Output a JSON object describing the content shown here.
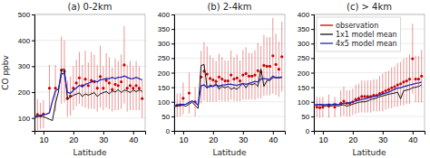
{
  "chart_data": [
    {
      "type": "line",
      "title": "(a) 0-2km",
      "xlabel": "Latitude",
      "ylabel": "CO ppbv",
      "xlim": [
        7,
        44
      ],
      "xticks": [
        10,
        20,
        30,
        40
      ],
      "ylim": [
        50,
        500
      ],
      "yticks": [
        100,
        200,
        300,
        400,
        500
      ],
      "grid": "y",
      "series": [
        {
          "name": "observation",
          "type": "scatter",
          "marker": "circle",
          "color": "#cc0000",
          "x": [
            8,
            9,
            10,
            12,
            14,
            16,
            17,
            18,
            19,
            20,
            21,
            22,
            23,
            24,
            25,
            26,
            27,
            28,
            29,
            30,
            31,
            32,
            33,
            34,
            35,
            36,
            37,
            38,
            39,
            40,
            41,
            42,
            43
          ],
          "values": [
            113,
            108,
            115,
            215,
            215,
            285,
            280,
            175,
            185,
            215,
            235,
            255,
            225,
            250,
            225,
            245,
            240,
            215,
            260,
            215,
            245,
            235,
            210,
            230,
            225,
            240,
            305,
            215,
            225,
            215,
            225,
            215,
            175
          ],
          "error_low": [
            60,
            50,
            55,
            90,
            90,
            130,
            120,
            70,
            75,
            85,
            90,
            100,
            80,
            110,
            90,
            110,
            105,
            90,
            120,
            85,
            105,
            100,
            85,
            100,
            95,
            105,
            150,
            90,
            95,
            85,
            95,
            85,
            75
          ],
          "error_high": [
            60,
            50,
            55,
            90,
            90,
            130,
            120,
            70,
            75,
            85,
            90,
            100,
            80,
            110,
            90,
            110,
            105,
            90,
            120,
            85,
            105,
            100,
            85,
            100,
            95,
            105,
            150,
            90,
            95,
            85,
            95,
            85,
            75
          ]
        },
        {
          "name": "1x1 model mean",
          "type": "line",
          "color": "#111111",
          "x": [
            7,
            8,
            9,
            10,
            11,
            12,
            13,
            14,
            15,
            16,
            17,
            18,
            19,
            20,
            21,
            22,
            23,
            24,
            25,
            26,
            27,
            28,
            29,
            30,
            31,
            32,
            33,
            34,
            35,
            36,
            37,
            38,
            39,
            40,
            41,
            42,
            43
          ],
          "values": [
            100,
            105,
            107,
            105,
            100,
            95,
            90,
            155,
            200,
            285,
            290,
            175,
            180,
            188,
            192,
            197,
            183,
            193,
            188,
            193,
            198,
            183,
            193,
            198,
            202,
            193,
            205,
            200,
            210,
            198,
            208,
            205,
            198,
            208,
            202,
            208,
            203
          ]
        },
        {
          "name": "4x5 model mean",
          "type": "line",
          "color": "#2222bb",
          "x": [
            7,
            8,
            9,
            10,
            11,
            12,
            13,
            14,
            15,
            16,
            17,
            18,
            19,
            20,
            21,
            22,
            23,
            24,
            25,
            26,
            27,
            28,
            29,
            30,
            31,
            32,
            33,
            34,
            35,
            36,
            37,
            38,
            39,
            40,
            41,
            42,
            43
          ],
          "values": [
            105,
            108,
            110,
            112,
            115,
            120,
            165,
            205,
            212,
            270,
            272,
            200,
            195,
            207,
            216,
            226,
            220,
            230,
            234,
            239,
            244,
            239,
            248,
            249,
            253,
            252,
            257,
            252,
            257,
            257,
            262,
            257,
            252,
            252,
            257,
            252,
            247
          ]
        }
      ]
    },
    {
      "type": "line",
      "title": "(b) 2-4km",
      "xlabel": "Latitude",
      "xlim": [
        7,
        44
      ],
      "xticks": [
        10,
        20,
        30,
        40
      ],
      "ylim": [
        0,
        400
      ],
      "yticks": [
        0,
        50,
        100,
        150,
        200,
        250,
        300,
        350,
        400
      ],
      "grid": "y",
      "series": [
        {
          "name": "observation",
          "type": "scatter",
          "marker": "circle",
          "color": "#cc0000",
          "x": [
            8,
            9,
            10,
            12,
            14,
            16,
            17,
            18,
            19,
            20,
            21,
            22,
            23,
            24,
            25,
            26,
            27,
            28,
            29,
            30,
            31,
            32,
            33,
            34,
            35,
            36,
            37,
            38,
            39,
            40,
            41,
            42,
            43
          ],
          "values": [
            88,
            90,
            112,
            130,
            100,
            185,
            205,
            195,
            180,
            175,
            170,
            185,
            178,
            172,
            172,
            192,
            178,
            182,
            172,
            192,
            197,
            188,
            188,
            192,
            207,
            202,
            225,
            222,
            222,
            258,
            228,
            212,
            255
          ],
          "error_low": [
            40,
            40,
            55,
            70,
            50,
            90,
            100,
            95,
            80,
            75,
            70,
            80,
            75,
            70,
            70,
            85,
            75,
            80,
            70,
            85,
            90,
            80,
            80,
            85,
            95,
            90,
            105,
            100,
            100,
            130,
            105,
            95,
            120
          ],
          "error_high": [
            40,
            40,
            55,
            70,
            50,
            90,
            100,
            95,
            80,
            75,
            70,
            80,
            75,
            70,
            70,
            85,
            75,
            80,
            70,
            85,
            90,
            80,
            80,
            85,
            95,
            90,
            105,
            100,
            100,
            130,
            105,
            95,
            120
          ]
        },
        {
          "name": "1x1 model mean",
          "type": "line",
          "color": "#111111",
          "x": [
            7,
            8,
            9,
            10,
            11,
            12,
            13,
            14,
            15,
            16,
            17,
            18,
            19,
            20,
            21,
            22,
            23,
            24,
            25,
            26,
            27,
            28,
            29,
            30,
            31,
            32,
            33,
            34,
            35,
            36,
            37,
            38,
            39,
            40,
            41,
            42,
            43
          ],
          "values": [
            83,
            85,
            87,
            88,
            85,
            92,
            98,
            88,
            77,
            225,
            228,
            148,
            158,
            153,
            163,
            143,
            153,
            148,
            153,
            143,
            148,
            143,
            153,
            163,
            148,
            163,
            158,
            163,
            153,
            213,
            153,
            173,
            173,
            183,
            183,
            183,
            183
          ]
        },
        {
          "name": "4x5 model mean",
          "type": "line",
          "color": "#2222bb",
          "x": [
            7,
            8,
            9,
            10,
            11,
            12,
            13,
            14,
            15,
            16,
            17,
            18,
            19,
            20,
            21,
            22,
            23,
            24,
            25,
            26,
            27,
            28,
            29,
            30,
            31,
            32,
            33,
            34,
            35,
            36,
            37,
            38,
            39,
            40,
            41,
            42,
            43
          ],
          "values": [
            87,
            89,
            91,
            91,
            92,
            98,
            103,
            98,
            88,
            155,
            158,
            148,
            153,
            153,
            158,
            153,
            158,
            158,
            161,
            160,
            158,
            156,
            160,
            163,
            160,
            163,
            166,
            170,
            168,
            178,
            180,
            178,
            178,
            188,
            183,
            183,
            186
          ]
        }
      ]
    },
    {
      "type": "line",
      "title": "(c) > 4km",
      "xlabel": "Latitude",
      "xlim": [
        7,
        44
      ],
      "xticks": [
        10,
        20,
        30,
        40
      ],
      "ylim": [
        0,
        400
      ],
      "yticks": [
        0,
        50,
        100,
        150,
        200,
        250,
        300,
        350,
        400
      ],
      "grid": "y",
      "legend": "upper left",
      "series": [
        {
          "name": "observation",
          "type": "scatter",
          "marker": "circle",
          "color": "#cc0000",
          "x": [
            8,
            9,
            10,
            12,
            14,
            16,
            17,
            18,
            19,
            20,
            21,
            22,
            23,
            24,
            25,
            26,
            27,
            28,
            29,
            30,
            31,
            32,
            33,
            34,
            35,
            36,
            37,
            38,
            39,
            40,
            41,
            42,
            43
          ],
          "values": [
            82,
            80,
            82,
            85,
            82,
            95,
            102,
            95,
            95,
            100,
            108,
            112,
            118,
            118,
            118,
            118,
            122,
            122,
            128,
            132,
            138,
            142,
            148,
            152,
            158,
            162,
            168,
            172,
            178,
            248,
            178,
            178,
            188
          ],
          "error_low": [
            35,
            35,
            35,
            40,
            35,
            45,
            50,
            45,
            45,
            45,
            50,
            50,
            55,
            55,
            55,
            55,
            55,
            55,
            60,
            65,
            65,
            65,
            70,
            70,
            75,
            75,
            80,
            80,
            85,
            120,
            80,
            80,
            90
          ],
          "error_high": [
            35,
            35,
            35,
            40,
            35,
            45,
            50,
            45,
            45,
            45,
            50,
            50,
            55,
            55,
            55,
            55,
            55,
            55,
            60,
            65,
            65,
            65,
            70,
            70,
            75,
            75,
            80,
            80,
            85,
            120,
            80,
            80,
            90
          ]
        },
        {
          "name": "1x1 model mean",
          "type": "line",
          "color": "#111111",
          "x": [
            7,
            8,
            9,
            10,
            11,
            12,
            13,
            14,
            15,
            16,
            17,
            18,
            19,
            20,
            21,
            22,
            23,
            24,
            25,
            26,
            27,
            28,
            29,
            30,
            31,
            32,
            33,
            34,
            35,
            36,
            37,
            38,
            39,
            40,
            41,
            42,
            43
          ],
          "values": [
            88,
            90,
            90,
            88,
            85,
            88,
            85,
            90,
            85,
            88,
            90,
            85,
            88,
            92,
            95,
            98,
            100,
            100,
            103,
            108,
            110,
            113,
            118,
            120,
            123,
            126,
            128,
            130,
            133,
            110,
            138,
            140,
            143,
            148,
            150,
            153,
            158
          ]
        },
        {
          "name": "4x5 model mean",
          "type": "line",
          "color": "#2222bb",
          "x": [
            7,
            8,
            9,
            10,
            11,
            12,
            13,
            14,
            15,
            16,
            17,
            18,
            19,
            20,
            21,
            22,
            23,
            24,
            25,
            26,
            27,
            28,
            29,
            30,
            31,
            32,
            33,
            34,
            35,
            36,
            37,
            38,
            39,
            40,
            41,
            42,
            43
          ],
          "values": [
            88,
            90,
            91,
            90,
            90,
            92,
            90,
            93,
            90,
            93,
            95,
            95,
            97,
            100,
            103,
            106,
            108,
            110,
            113,
            116,
            118,
            120,
            124,
            127,
            130,
            133,
            138,
            143,
            147,
            148,
            152,
            155,
            158,
            160,
            163,
            165,
            168
          ]
        }
      ]
    }
  ]
}
